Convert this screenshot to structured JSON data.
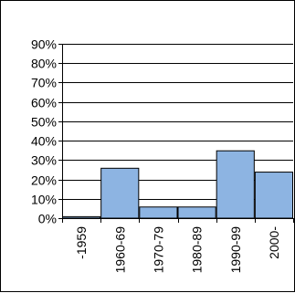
{
  "chart_data": {
    "type": "bar",
    "categories": [
      "-1959",
      "1960-69",
      "1970-79",
      "1980-89",
      "1990-99",
      "2000-"
    ],
    "values": [
      1,
      26,
      6,
      6,
      35,
      24
    ],
    "title": "",
    "xlabel": "",
    "ylabel": "",
    "ylim": [
      0,
      90
    ],
    "yticks": [
      "0%",
      "10%",
      "20%",
      "30%",
      "40%",
      "50%",
      "60%",
      "70%",
      "80%",
      "90%"
    ],
    "grid": true,
    "legend": "none",
    "colors": {
      "bar_fill": "#8DB4E2",
      "bar_stroke": "#000000",
      "grid": "#000000",
      "text": "#000000"
    }
  }
}
